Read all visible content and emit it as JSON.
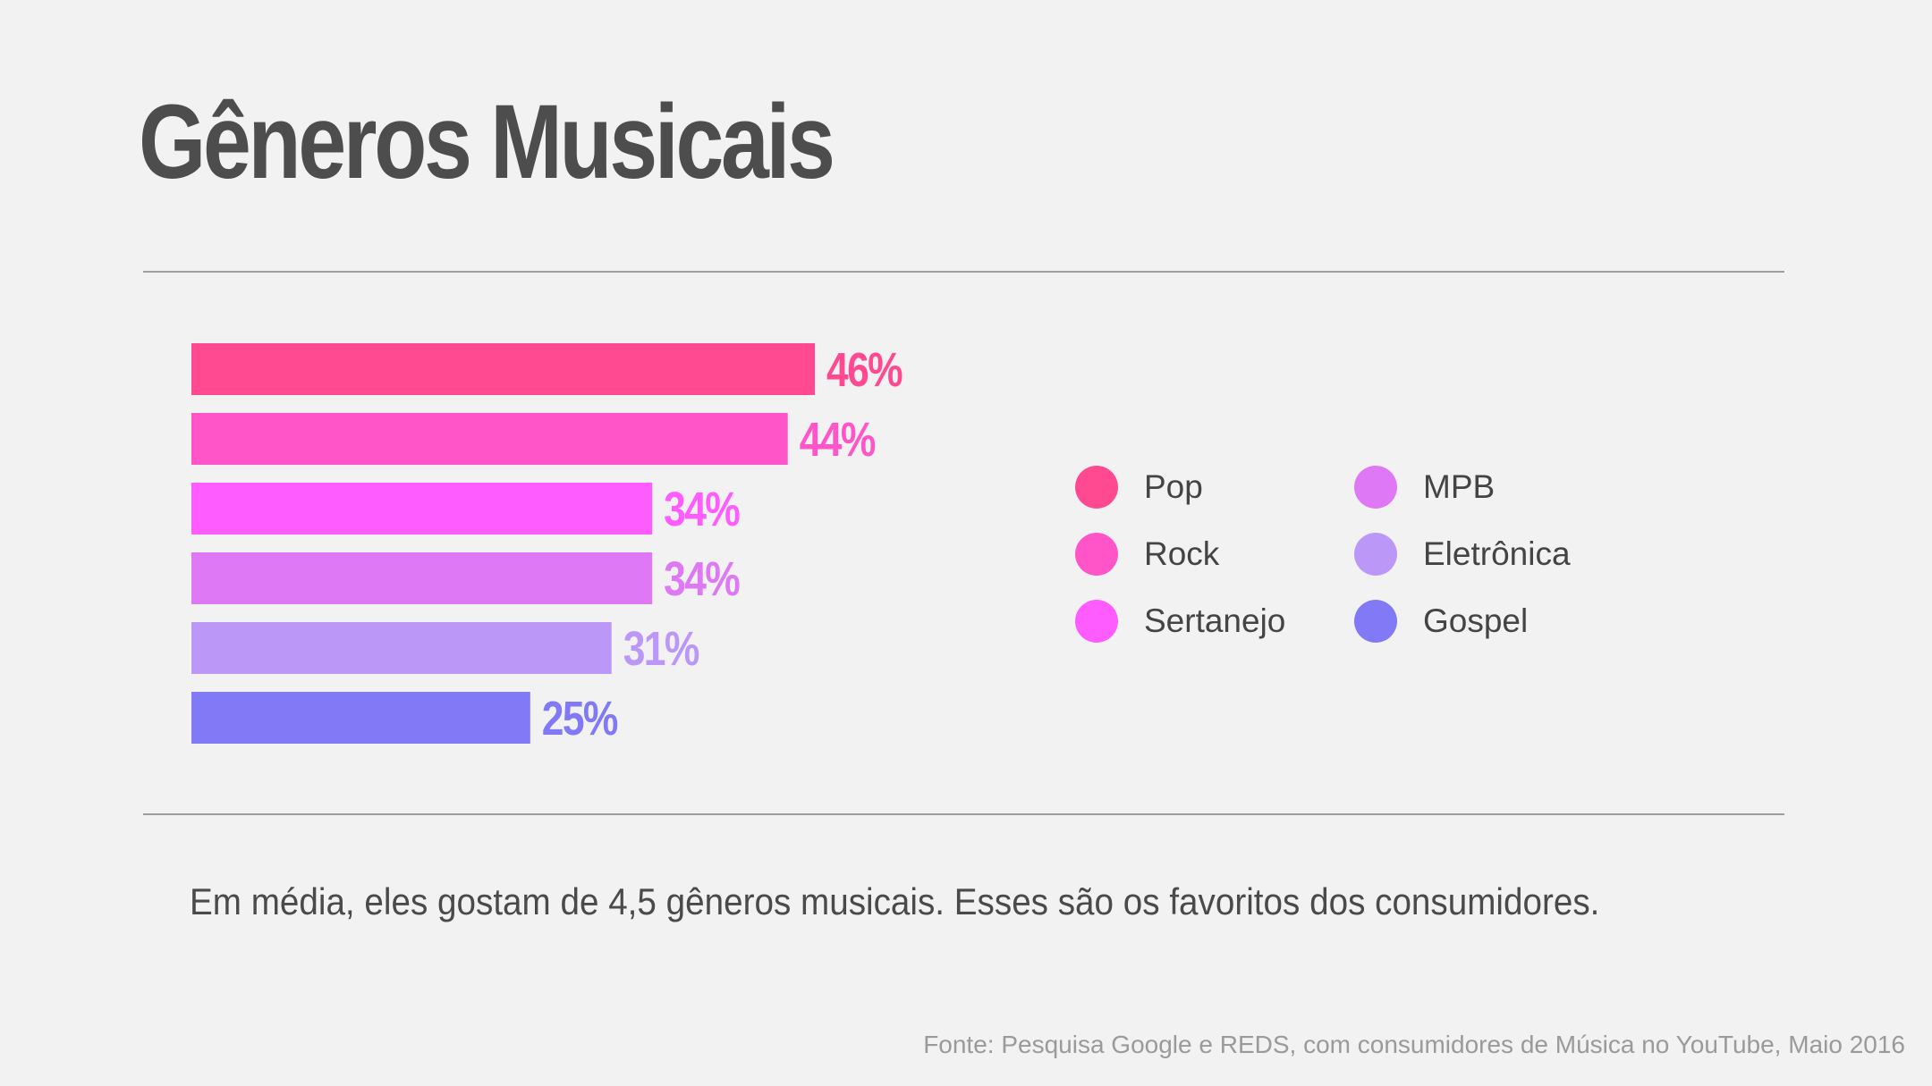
{
  "page": {
    "title": "Gêneros Musicais",
    "subtitle": "Em média, eles gostam de 4,5 gêneros musicais. Esses são os favoritos dos consumidores.",
    "source": "Fonte: Pesquisa Google e REDS, com consumidores de Música no YouTube, Maio 2016"
  },
  "legend": {
    "items": [
      {
        "label": "Pop",
        "color": "#ff4a91"
      },
      {
        "label": "MPB",
        "color": "#df78f5"
      },
      {
        "label": "Rock",
        "color": "#ff55c8"
      },
      {
        "label": "Eletrônica",
        "color": "#bb98f7"
      },
      {
        "label": "Sertanejo",
        "color": "#ff5cff"
      },
      {
        "label": "Gospel",
        "color": "#8279f6"
      }
    ]
  },
  "chart_data": {
    "type": "bar",
    "orientation": "horizontal",
    "categories": [
      "Pop",
      "Rock",
      "Sertanejo",
      "MPB",
      "Eletrônica",
      "Gospel"
    ],
    "values": [
      46,
      44,
      34,
      34,
      31,
      25
    ],
    "value_labels": [
      "46%",
      "44%",
      "34%",
      "34%",
      "31%",
      "25%"
    ],
    "colors": [
      "#ff4a91",
      "#ff55c8",
      "#ff5cff",
      "#df78f5",
      "#bb98f7",
      "#8279f6"
    ],
    "unit": "%",
    "xlim": [
      0,
      46
    ],
    "grid": false,
    "legend_position": "right",
    "title": "",
    "xlabel": "",
    "ylabel": ""
  }
}
